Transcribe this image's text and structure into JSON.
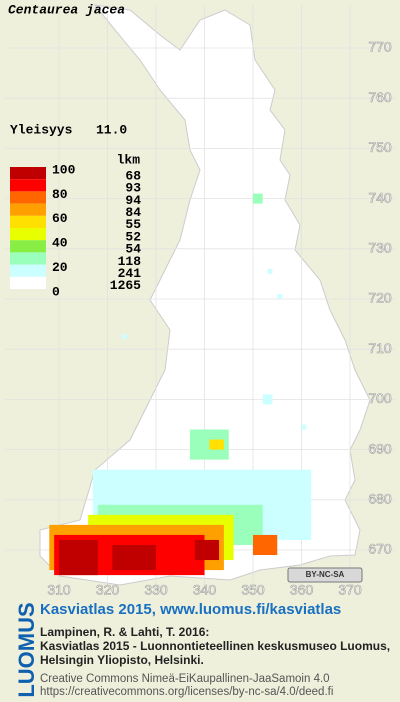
{
  "title": "Centaurea jacea",
  "frequency_label": "Yleisyys",
  "frequency_value": "11.0",
  "legend": {
    "header": "lkm",
    "scale_labels": [
      100,
      80,
      60,
      40,
      20,
      0
    ],
    "classes": [
      {
        "color": "#c00000",
        "count": 68
      },
      {
        "color": "#ff0000",
        "count": 93
      },
      {
        "color": "#ff6600",
        "count": 94
      },
      {
        "color": "#ffa000",
        "count": 84
      },
      {
        "color": "#ffe000",
        "count": 55
      },
      {
        "color": "#e8ff00",
        "count": 52
      },
      {
        "color": "#88ee44",
        "count": 54
      },
      {
        "color": "#99ffbb",
        "count": 118
      },
      {
        "color": "#ccffff",
        "count": 241
      },
      {
        "color": "#ffffff",
        "count": 1265
      }
    ]
  },
  "map": {
    "xticks": [
      310,
      320,
      330,
      340,
      350,
      360,
      370
    ],
    "yticks": [
      670,
      680,
      690,
      700,
      710,
      720,
      730,
      740,
      750,
      760,
      770
    ],
    "patches": [
      {
        "x0": 317,
        "x1": 362,
        "y0": 672,
        "y1": 686,
        "level": 8
      },
      {
        "x0": 318,
        "x1": 352,
        "y0": 671,
        "y1": 679,
        "level": 7
      },
      {
        "x0": 316,
        "x1": 346,
        "y0": 668,
        "y1": 677,
        "level": 5
      },
      {
        "x0": 308,
        "x1": 344,
        "y0": 666,
        "y1": 675,
        "level": 3
      },
      {
        "x0": 309,
        "x1": 340,
        "y0": 665,
        "y1": 673,
        "level": 1
      },
      {
        "x0": 310,
        "x1": 318,
        "y0": 665,
        "y1": 672,
        "level": 0
      },
      {
        "x0": 321,
        "x1": 330,
        "y0": 666,
        "y1": 671,
        "level": 0
      },
      {
        "x0": 338,
        "x1": 343,
        "y0": 668,
        "y1": 672,
        "level": 0
      },
      {
        "x0": 350,
        "x1": 355,
        "y0": 669,
        "y1": 673,
        "level": 2
      },
      {
        "x0": 337,
        "x1": 345,
        "y0": 688,
        "y1": 694,
        "level": 7
      },
      {
        "x0": 341,
        "x1": 344,
        "y0": 690,
        "y1": 692,
        "level": 4
      },
      {
        "x0": 350,
        "x1": 352,
        "y0": 739,
        "y1": 741,
        "level": 7
      },
      {
        "x0": 355,
        "x1": 356,
        "y0": 720,
        "y1": 721,
        "level": 8
      },
      {
        "x0": 353,
        "x1": 354,
        "y0": 725,
        "y1": 726,
        "level": 8
      },
      {
        "x0": 352,
        "x1": 354,
        "y0": 699,
        "y1": 701,
        "level": 8
      },
      {
        "x0": 360,
        "x1": 361,
        "y0": 694,
        "y1": 695,
        "level": 8
      },
      {
        "x0": 323,
        "x1": 324,
        "y0": 712,
        "y1": 713,
        "level": 8
      }
    ]
  },
  "cc_badge": "BY-NC-SA",
  "footer": {
    "brand": "LUOMUS",
    "headline": "Kasviatlas 2015, www.luomus.fi/kasviatlas",
    "citation": [
      "Lampinen, R. & Lahti, T. 2016:",
      "Kasviatlas 2015 - Luonnontieteellinen keskusmuseo Luomus,",
      "Helsingin Yliopisto, Helsinki."
    ],
    "license": [
      "Creative Commons Nimeä-EiKaupallinen-JaaSamoin 4.0",
      "https://creativecommons.org/licenses/by-nc-sa/4.0/deed.fi"
    ]
  }
}
